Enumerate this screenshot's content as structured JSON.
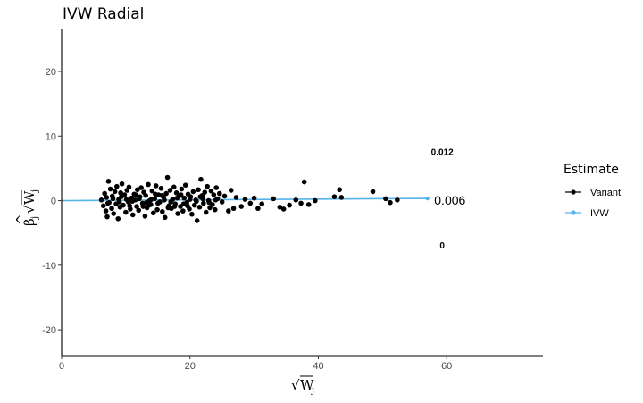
{
  "chart_data": {
    "type": "scatter",
    "title": "IVW Radial",
    "xlabel": "√W_j",
    "xlabel_parts": {
      "root": "√",
      "base": "W",
      "sub": "j"
    },
    "ylabel": "β̂_j √W_j",
    "ylabel_parts": {
      "hat": "^",
      "beta": "β",
      "sub_j": "j",
      "root": "√",
      "w": "W",
      "w_sub": "j"
    },
    "xlim": [
      0,
      75
    ],
    "ylim": [
      -24,
      26.5
    ],
    "x_ticks": [
      0,
      20,
      40,
      60
    ],
    "x_tick_labels": [
      "0",
      "20",
      "40",
      "60"
    ],
    "y_ticks": [
      -20,
      -10,
      0,
      10,
      20
    ],
    "y_tick_labels": [
      "-20",
      "-10",
      "0",
      "10",
      "20"
    ],
    "grid": false,
    "legend": {
      "title": "Estimate",
      "placement": "right",
      "entries": [
        {
          "label": "Variant",
          "color": "#000000"
        },
        {
          "label": "IVW",
          "color": "#56B4E9"
        }
      ]
    },
    "series": [
      {
        "name": "Variant",
        "color": "#000000",
        "points": [
          [
            6.2,
            0.1
          ],
          [
            6.5,
            -0.8
          ],
          [
            6.7,
            1.1
          ],
          [
            6.9,
            -1.6
          ],
          [
            7.0,
            0.5
          ],
          [
            7.1,
            -2.5
          ],
          [
            7.3,
            3.0
          ],
          [
            7.4,
            -0.3
          ],
          [
            7.6,
            1.8
          ],
          [
            7.8,
            -1.2
          ],
          [
            7.9,
            0.7
          ],
          [
            8.1,
            -2.0
          ],
          [
            8.3,
            1.4
          ],
          [
            8.5,
            -0.5
          ],
          [
            8.6,
            2.2
          ],
          [
            8.8,
            -2.8
          ],
          [
            8.9,
            0.2
          ],
          [
            9.1,
            -1.0
          ],
          [
            9.2,
            1.2
          ],
          [
            9.4,
            2.6
          ],
          [
            9.6,
            -0.7
          ],
          [
            9.8,
            0.9
          ],
          [
            10.0,
            -1.8
          ],
          [
            10.2,
            1.6
          ],
          [
            10.4,
            -0.2
          ],
          [
            10.5,
            2.1
          ],
          [
            10.7,
            -1.3
          ],
          [
            10.9,
            0.4
          ],
          [
            11.1,
            -2.2
          ],
          [
            11.3,
            1.0
          ],
          [
            11.5,
            0.1
          ],
          [
            11.7,
            -0.9
          ],
          [
            11.8,
            1.7
          ],
          [
            12.0,
            -1.5
          ],
          [
            12.2,
            0.6
          ],
          [
            12.4,
            2.0
          ],
          [
            12.6,
            -0.4
          ],
          [
            12.8,
            1.3
          ],
          [
            13.0,
            -2.4
          ],
          [
            13.1,
            0.8
          ],
          [
            13.3,
            -1.1
          ],
          [
            13.5,
            2.5
          ],
          [
            13.7,
            0.0
          ],
          [
            13.9,
            -0.6
          ],
          [
            14.1,
            1.5
          ],
          [
            14.3,
            -1.9
          ],
          [
            14.5,
            0.3
          ],
          [
            14.7,
            2.3
          ],
          [
            14.9,
            -1.4
          ],
          [
            15.1,
            0.9
          ],
          [
            15.3,
            -0.2
          ],
          [
            15.5,
            1.9
          ],
          [
            15.7,
            -1.7
          ],
          [
            15.9,
            0.5
          ],
          [
            16.1,
            -2.6
          ],
          [
            16.3,
            1.1
          ],
          [
            16.5,
            3.6
          ],
          [
            16.7,
            -0.8
          ],
          [
            16.9,
            1.6
          ],
          [
            17.1,
            -1.2
          ],
          [
            17.3,
            0.2
          ],
          [
            17.5,
            2.1
          ],
          [
            17.7,
            -0.5
          ],
          [
            17.9,
            1.2
          ],
          [
            18.1,
            -2.0
          ],
          [
            18.3,
            0.7
          ],
          [
            18.5,
            -0.9
          ],
          [
            18.7,
            1.8
          ],
          [
            18.9,
            -1.6
          ],
          [
            19.1,
            0.4
          ],
          [
            19.3,
            2.4
          ],
          [
            19.5,
            -0.3
          ],
          [
            19.7,
            1.0
          ],
          [
            19.9,
            -1.3
          ],
          [
            20.1,
            0.6
          ],
          [
            20.3,
            -2.1
          ],
          [
            20.5,
            1.4
          ],
          [
            20.7,
            -0.7
          ],
          [
            20.9,
            0.1
          ],
          [
            21.1,
            -3.1
          ],
          [
            21.3,
            1.7
          ],
          [
            21.5,
            -1.0
          ],
          [
            21.7,
            3.3
          ],
          [
            21.9,
            0.8
          ],
          [
            22.1,
            -0.4
          ],
          [
            22.3,
            1.3
          ],
          [
            22.5,
            -1.8
          ],
          [
            22.7,
            2.2
          ],
          [
            22.9,
            0.0
          ],
          [
            23.1,
            -1.1
          ],
          [
            23.3,
            1.5
          ],
          [
            23.5,
            -0.6
          ],
          [
            23.7,
            0.9
          ],
          [
            23.9,
            -1.4
          ],
          [
            24.1,
            2.0
          ],
          [
            24.3,
            0.3
          ],
          [
            24.6,
            1.1
          ],
          [
            25.0,
            -0.2
          ],
          [
            25.4,
            0.7
          ],
          [
            26.0,
            -1.6
          ],
          [
            26.4,
            1.6
          ],
          [
            26.8,
            -1.2
          ],
          [
            27.2,
            0.5
          ],
          [
            28.0,
            -0.9
          ],
          [
            28.6,
            0.2
          ],
          [
            29.4,
            -0.4
          ],
          [
            30.0,
            0.4
          ],
          [
            30.6,
            -1.2
          ],
          [
            31.2,
            -0.5
          ],
          [
            33.0,
            0.3
          ],
          [
            34.0,
            -1.0
          ],
          [
            34.6,
            -1.3
          ],
          [
            35.5,
            -0.7
          ],
          [
            36.5,
            0.1
          ],
          [
            37.3,
            -0.4
          ],
          [
            37.8,
            2.9
          ],
          [
            38.5,
            -0.6
          ],
          [
            39.5,
            0.0
          ],
          [
            42.5,
            0.6
          ],
          [
            43.3,
            1.7
          ],
          [
            43.6,
            0.5
          ],
          [
            48.5,
            1.4
          ],
          [
            50.5,
            0.3
          ],
          [
            51.2,
            -0.3
          ],
          [
            52.3,
            0.1
          ],
          [
            7.2,
            -0.4
          ],
          [
            8.0,
            0.3
          ],
          [
            9.0,
            -0.2
          ],
          [
            10.1,
            0.2
          ],
          [
            11.0,
            -0.1
          ],
          [
            12.1,
            0.3
          ],
          [
            13.2,
            -0.3
          ],
          [
            14.0,
            0.2
          ],
          [
            15.0,
            -0.4
          ],
          [
            16.0,
            0.1
          ],
          [
            17.0,
            -0.2
          ],
          [
            18.0,
            0.4
          ],
          [
            19.0,
            -0.5
          ],
          [
            20.0,
            0.2
          ],
          [
            21.0,
            -0.1
          ],
          [
            22.0,
            0.3
          ],
          [
            23.0,
            -0.3
          ],
          [
            24.0,
            0.1
          ],
          [
            12.7,
            -0.9
          ],
          [
            14.6,
            1.0
          ],
          [
            16.6,
            -1.1
          ],
          [
            18.6,
            0.9
          ],
          [
            10.6,
            -0.8
          ],
          [
            9.3,
            0.6
          ],
          [
            11.6,
            0.9
          ],
          [
            13.6,
            -0.7
          ],
          [
            15.6,
            0.8
          ],
          [
            17.6,
            -0.9
          ],
          [
            19.6,
            -0.8
          ],
          [
            21.6,
            0.6
          ]
        ]
      },
      {
        "name": "IVW",
        "color": "#56B4E9",
        "slope": 0.006,
        "line_x": [
          0,
          57
        ]
      }
    ],
    "annotations": [
      {
        "text": "0.012",
        "x": 59.3,
        "y": 7.5,
        "style": "small"
      },
      {
        "text": "0.006",
        "x": 60.5,
        "y": 0.1,
        "style": "big"
      },
      {
        "text": "0",
        "x": 59.3,
        "y": -7.0,
        "style": "small"
      }
    ]
  }
}
